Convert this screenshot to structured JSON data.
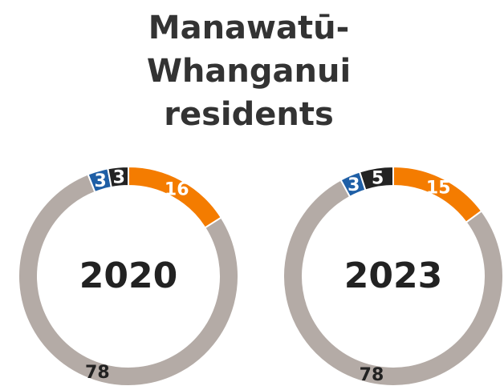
{
  "header": {
    "title": "Manawatū-Whanganui residents"
  },
  "chart_data": [
    {
      "type": "donut",
      "center_label": "2020",
      "values": [
        16,
        78,
        3,
        3
      ],
      "colors": [
        "#f47c00",
        "#b4aba6",
        "#1f5fa6",
        "#232323"
      ]
    },
    {
      "type": "donut",
      "center_label": "2023",
      "values": [
        15,
        78,
        3,
        5
      ],
      "colors": [
        "#f47c00",
        "#b4aba6",
        "#1f5fa6",
        "#232323"
      ]
    }
  ]
}
